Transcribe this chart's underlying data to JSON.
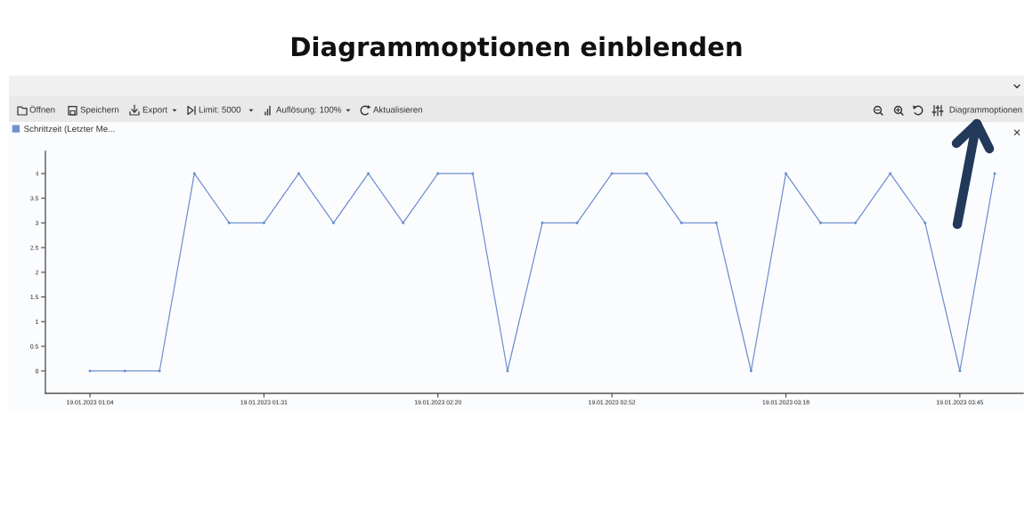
{
  "chart_data": {
    "type": "line",
    "title": "Diagrammoptionen einblenden",
    "categories": [
      "19.01.2023 01:04",
      null,
      null,
      null,
      null,
      "19.01.2023 01:31",
      null,
      null,
      null,
      null,
      "19.01.2023 02:20",
      null,
      null,
      null,
      null,
      "19.01.2023 02:52",
      null,
      null,
      null,
      null,
      "19.01.2023 03:18",
      null,
      null,
      null,
      null,
      "19.01.2023 03:45",
      null
    ],
    "series": [
      {
        "name": "Schrittzeit (Letzter Me...",
        "color": "#6d90d0",
        "values": [
          0,
          0,
          0,
          4,
          3,
          3,
          4,
          3,
          4,
          3,
          4,
          4,
          0,
          3,
          3,
          4,
          4,
          3,
          3,
          0,
          4,
          3,
          3,
          4,
          3,
          0,
          4
        ]
      }
    ],
    "ylim": [
      -0.45,
      4.45
    ],
    "yticks": [
      0,
      0.5,
      1,
      1.5,
      2,
      2.5,
      3,
      3.5,
      4
    ],
    "marker": "circle",
    "line_style": "solid",
    "grid": false,
    "legend": "top left",
    "annotations": [
      "Öffnen",
      "Speichern",
      "Export",
      "Limit: 5000",
      "Auflösung: 100%",
      "Aktualisieren",
      "Diagrammoptionen",
      "×"
    ]
  }
}
